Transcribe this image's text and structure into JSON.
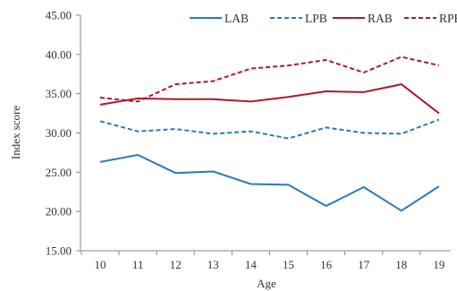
{
  "chart_data": {
    "type": "line",
    "xlabel": "Age",
    "ylabel": "Index score",
    "x": [
      10,
      11,
      12,
      13,
      14,
      15,
      16,
      17,
      18,
      19
    ],
    "ylim": [
      15,
      45
    ],
    "yticks": [
      "15.00",
      "20.00",
      "25.00",
      "30.00",
      "35.00",
      "40.00",
      "45.00"
    ],
    "grid": false,
    "legend_position": "top-right",
    "series": [
      {
        "name": "LAB",
        "color": "#2a7ab9",
        "dash": "solid",
        "values": [
          26.3,
          27.2,
          24.9,
          25.1,
          23.5,
          23.4,
          20.7,
          23.1,
          20.1,
          23.2
        ]
      },
      {
        "name": "LPB",
        "color": "#2a7ab9",
        "dash": "dashed",
        "values": [
          31.5,
          30.2,
          30.5,
          29.9,
          30.2,
          29.3,
          30.7,
          30.0,
          29.9,
          31.7
        ]
      },
      {
        "name": "RAB",
        "color": "#b0182a",
        "dash": "solid",
        "values": [
          33.6,
          34.4,
          34.3,
          34.3,
          34.0,
          34.6,
          35.3,
          35.2,
          36.2,
          32.5
        ]
      },
      {
        "name": "RPB",
        "color": "#b0182a",
        "dash": "dashed",
        "values": [
          34.5,
          34.0,
          36.2,
          36.6,
          38.2,
          38.6,
          39.3,
          37.7,
          39.7,
          38.6
        ]
      }
    ]
  }
}
